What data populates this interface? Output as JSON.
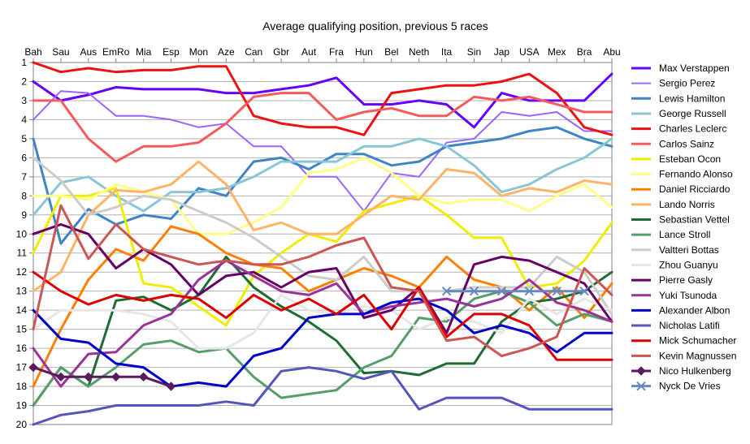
{
  "chart_data": {
    "type": "line",
    "title": "Average qualifying position, previous 5 races",
    "xlabel": "",
    "ylabel": "",
    "categories": [
      "Bah",
      "Sau",
      "Aus",
      "EmRo",
      "Mia",
      "Esp",
      "Mon",
      "Aze",
      "Can",
      "Gbr",
      "Aut",
      "Fra",
      "Hun",
      "Bel",
      "Neth",
      "Ita",
      "Sin",
      "Jap",
      "USA",
      "Mex",
      "Bra",
      "Abu"
    ],
    "ylim": [
      20,
      1
    ],
    "yticks": [
      1,
      2,
      3,
      4,
      5,
      6,
      7,
      8,
      9,
      10,
      11,
      12,
      13,
      14,
      15,
      16,
      17,
      18,
      19,
      20
    ],
    "grid": "horizontal",
    "legend_position": "right",
    "series": [
      {
        "name": "Max Verstappen",
        "color": "#6600ff",
        "width": 3,
        "values": [
          2,
          3,
          2.7,
          2.3,
          2.4,
          2.4,
          2.4,
          2.6,
          2.6,
          2.4,
          2.2,
          1.8,
          3.2,
          3.2,
          3,
          3.2,
          4.4,
          2.6,
          3,
          3,
          3,
          1.6
        ]
      },
      {
        "name": "Sergio Perez",
        "color": "#9966ff",
        "width": 2,
        "values": [
          4,
          2.5,
          2.6,
          3.8,
          3.8,
          4,
          4.4,
          4.2,
          5.4,
          5.4,
          7,
          7,
          8.8,
          6.8,
          7,
          5.2,
          5,
          3.6,
          3.8,
          3.6,
          4.6,
          4.6
        ]
      },
      {
        "name": "Lewis Hamilton",
        "color": "#3d85c6",
        "width": 3,
        "values": [
          5,
          10.5,
          8.7,
          9.5,
          9,
          9.2,
          7.6,
          8,
          6.2,
          6,
          6.6,
          5.8,
          5.8,
          6.4,
          6.2,
          5.4,
          5.2,
          5,
          4.6,
          4.4,
          5,
          5.4
        ]
      },
      {
        "name": "George Russell",
        "color": "#88c6d6",
        "width": 3,
        "values": [
          9,
          7.3,
          7,
          8,
          8.8,
          7.8,
          7.8,
          7.6,
          7,
          6.2,
          6.2,
          6.2,
          5.4,
          5.4,
          5,
          5.4,
          6.4,
          7.8,
          7.4,
          6.6,
          6,
          5
        ]
      },
      {
        "name": "Charles Leclerc",
        "color": "#ee1111",
        "width": 3,
        "values": [
          1,
          1.5,
          1.3,
          1.5,
          1.4,
          1.4,
          1.2,
          1.2,
          3.8,
          4.2,
          4.4,
          4.4,
          4.8,
          2.6,
          2.4,
          2.2,
          2.2,
          2,
          1.6,
          2.6,
          4.4,
          4.8
        ]
      },
      {
        "name": "Carlos Sainz",
        "color": "#f55b5b",
        "width": 3,
        "values": [
          3,
          3,
          5,
          6.2,
          5.4,
          5.4,
          5.2,
          4.2,
          2.8,
          2.6,
          2.6,
          4,
          3.6,
          3.4,
          3.8,
          3.8,
          2.8,
          3,
          2.8,
          3.2,
          3.6,
          3.6
        ]
      },
      {
        "name": "Esteban Ocon",
        "color": "#eeee00",
        "width": 3,
        "values": [
          11,
          8,
          8,
          7.6,
          12.6,
          12.8,
          13.8,
          14.8,
          12.2,
          11,
          10,
          10.4,
          8.8,
          8.4,
          8,
          9,
          10.2,
          10.2,
          12.8,
          12.6,
          11.4,
          9.4
        ]
      },
      {
        "name": "Fernando Alonso",
        "color": "#ffff88",
        "width": 3,
        "values": [
          8,
          8,
          8.2,
          7.4,
          7.8,
          8.2,
          10,
          10,
          9.4,
          8.6,
          6.8,
          6.6,
          6,
          6.8,
          8,
          8.4,
          8.2,
          8.2,
          8.8,
          8,
          7.4,
          8.6
        ]
      },
      {
        "name": "Daniel Ricciardo",
        "color": "#ff7f00",
        "width": 3,
        "values": [
          18,
          15,
          12.4,
          10.8,
          11.4,
          9.6,
          10,
          11,
          11.6,
          11.8,
          13,
          12.4,
          11.8,
          12.2,
          12.8,
          11.2,
          12.4,
          12.8,
          14,
          12.8,
          14.4,
          12.6
        ]
      },
      {
        "name": "Lando Norris",
        "color": "#ffb366",
        "width": 3,
        "values": [
          13,
          12,
          9,
          7.7,
          7.8,
          7.4,
          6.2,
          7.4,
          9.8,
          9.4,
          10,
          10,
          9,
          8,
          8.2,
          6.6,
          6.8,
          8,
          7.6,
          7.8,
          7.2,
          7.4
        ]
      },
      {
        "name": "Sebastian Vettel",
        "color": "#1e6b33",
        "width": 3,
        "values": [
          19,
          17,
          18,
          13.5,
          13.3,
          14,
          13.2,
          11.2,
          12.8,
          13.8,
          14.6,
          15.6,
          17.3,
          17.2,
          17.4,
          16.8,
          16.8,
          14.6,
          13.6,
          13.4,
          13,
          12
        ]
      },
      {
        "name": "Lance Stroll",
        "color": "#559e6a",
        "width": 3,
        "values": [
          19,
          17,
          18,
          17,
          15.8,
          15.6,
          16.2,
          16,
          17.5,
          18.6,
          18.4,
          18.2,
          17,
          16.4,
          14.4,
          14.6,
          13.4,
          13,
          13.6,
          14.8,
          14.2,
          14.6
        ]
      },
      {
        "name": "Valtteri Bottas",
        "color": "#cccccc",
        "width": 3,
        "values": [
          6,
          7.2,
          9,
          8.6,
          8,
          8.2,
          8.8,
          9.4,
          10.2,
          11.2,
          12.2,
          12.4,
          11.2,
          13,
          13,
          13,
          12.8,
          12.8,
          12.8,
          11.2,
          12,
          14.2
        ]
      },
      {
        "name": "Zhou Guanyu",
        "color": "#e6e6e6",
        "width": 3,
        "values": [
          15,
          14,
          14,
          14,
          14.2,
          14.6,
          16,
          16,
          15.2,
          13.2,
          14,
          14.2,
          13.8,
          14,
          15,
          14.4,
          14.6,
          15.2,
          13.4,
          14.2,
          13.4,
          14
        ]
      },
      {
        "name": "Pierre Gasly",
        "color": "#660066",
        "width": 3,
        "values": [
          10,
          9.5,
          10,
          11.8,
          10.8,
          11.6,
          13.2,
          12.2,
          12,
          12.8,
          12,
          11.8,
          14.4,
          14,
          12.8,
          15.2,
          11.6,
          11.2,
          11.4,
          12,
          12.6,
          14.6
        ]
      },
      {
        "name": "Yuki Tsunoda",
        "color": "#993399",
        "width": 3,
        "values": [
          16,
          18,
          16.3,
          16.2,
          14.8,
          14.2,
          12.4,
          11.4,
          12.2,
          13,
          13.2,
          12.6,
          14.2,
          13.8,
          13.6,
          13.4,
          13.8,
          13.4,
          12.4,
          13.6,
          14,
          14.6
        ]
      },
      {
        "name": "Alexander Albon",
        "color": "#0000cc",
        "width": 3,
        "values": [
          14,
          15.5,
          15.7,
          16.8,
          17,
          18,
          17.8,
          18,
          16.4,
          16,
          14.4,
          14.2,
          14.2,
          13.6,
          13.4,
          14,
          15.2,
          14.8,
          15.2,
          16.2,
          15.2,
          15.2
        ]
      },
      {
        "name": "Nicholas Latifi",
        "color": "#5555bb",
        "width": 3,
        "values": [
          20,
          19.5,
          19.3,
          19,
          19,
          19,
          19,
          18.8,
          19,
          17.2,
          17,
          17.2,
          17.6,
          17.2,
          19.2,
          18.6,
          18.6,
          18.6,
          19.2,
          19.2,
          19.2,
          19.2
        ]
      },
      {
        "name": "Mick Schumacher",
        "color": "#dd0000",
        "width": 3,
        "values": [
          12,
          13,
          13.7,
          13.2,
          13.5,
          13.2,
          13.4,
          14.4,
          13.2,
          14,
          13.4,
          14.2,
          13.2,
          15,
          12.8,
          15.4,
          14.2,
          14.2,
          14.8,
          16.6,
          16.6,
          16.6
        ]
      },
      {
        "name": "Kevin Magnussen",
        "color": "#cc5555",
        "width": 3,
        "values": [
          15,
          8.5,
          11.3,
          9.5,
          10.8,
          11.2,
          11.6,
          11.4,
          11.6,
          11.6,
          11.2,
          10.6,
          10.2,
          12.8,
          13,
          15.6,
          15.4,
          16.4,
          16,
          15.4,
          11.8,
          13.2
        ]
      },
      {
        "name": "Nico Hulkenberg",
        "color": "#5c1a5c",
        "width": 3,
        "marker": "diamond",
        "values": [
          17,
          17.5,
          17.5,
          17.5,
          17.5,
          18,
          null,
          null,
          null,
          null,
          null,
          null,
          null,
          null,
          null,
          null,
          null,
          null,
          null,
          null,
          null,
          null
        ]
      },
      {
        "name": "Nyck De Vries",
        "color": "#6688bb",
        "width": 3,
        "marker": "x",
        "values": [
          null,
          null,
          null,
          null,
          null,
          null,
          null,
          null,
          null,
          null,
          null,
          null,
          null,
          null,
          null,
          13,
          13,
          13,
          13,
          13,
          13,
          null
        ]
      }
    ]
  }
}
